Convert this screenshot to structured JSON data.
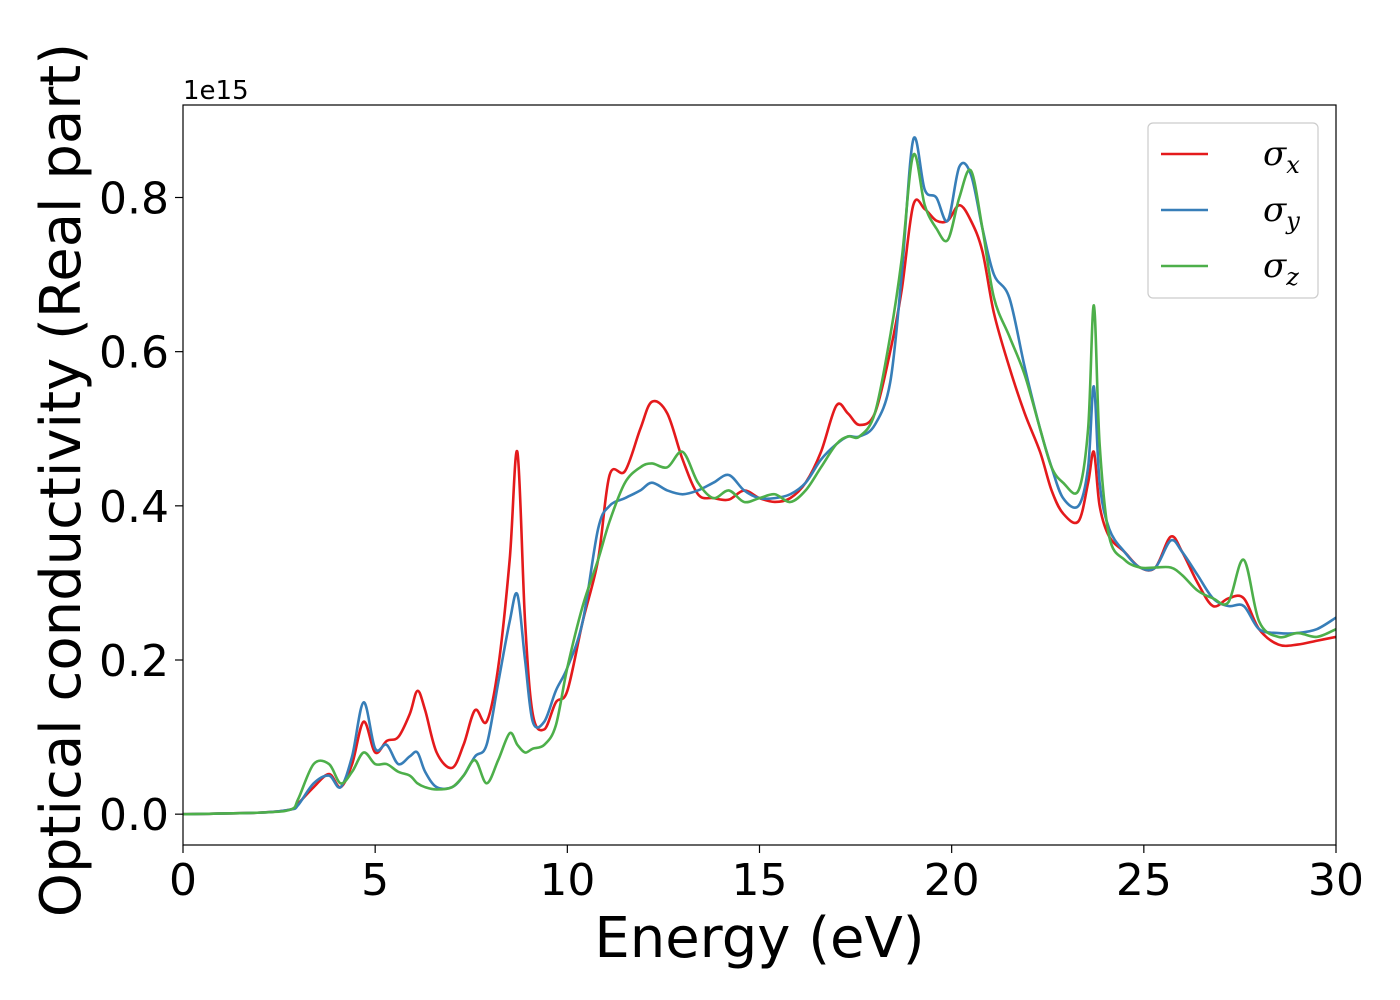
{
  "chart_data": {
    "type": "line",
    "xlabel": "Energy (eV)",
    "ylabel": "Optical conductivity (Real part)",
    "y_offset_label": "1e15",
    "xlim": [
      0,
      30
    ],
    "ylim": [
      -0.04,
      0.92
    ],
    "xticks": [
      0,
      5,
      10,
      15,
      20,
      25,
      30
    ],
    "xtick_labels": [
      "0",
      "5",
      "10",
      "15",
      "20",
      "25",
      "30"
    ],
    "yticks": [
      0.0,
      0.2,
      0.4,
      0.6,
      0.8
    ],
    "ytick_labels": [
      "0.0",
      "0.2",
      "0.4",
      "0.6",
      "0.8"
    ],
    "grid": false,
    "legend_position": "top-right",
    "series": [
      {
        "name": "σ",
        "subscript": "x",
        "color": "#e41a1c",
        "x": [
          0,
          2,
          2.8,
          3.0,
          3.4,
          3.8,
          4.1,
          4.4,
          4.7,
          5.0,
          5.3,
          5.6,
          5.9,
          6.1,
          6.3,
          6.6,
          7.0,
          7.3,
          7.6,
          7.9,
          8.2,
          8.5,
          8.7,
          8.9,
          9.1,
          9.4,
          9.7,
          10.0,
          10.4,
          10.8,
          11.1,
          11.5,
          11.9,
          12.2,
          12.6,
          13.0,
          13.4,
          13.8,
          14.2,
          14.6,
          15.0,
          15.4,
          15.8,
          16.2,
          16.6,
          17.0,
          17.3,
          17.6,
          18.0,
          18.4,
          18.7,
          19.0,
          19.3,
          19.6,
          19.9,
          20.2,
          20.5,
          20.8,
          21.1,
          21.5,
          21.9,
          22.3,
          22.6,
          22.9,
          23.3,
          23.55,
          23.7,
          23.85,
          24.1,
          24.5,
          24.9,
          25.3,
          25.7,
          26.0,
          26.4,
          26.8,
          27.2,
          27.6,
          28.0,
          28.5,
          29.0,
          29.5,
          30
        ],
        "y": [
          0.0,
          0.002,
          0.006,
          0.014,
          0.035,
          0.052,
          0.035,
          0.065,
          0.12,
          0.08,
          0.095,
          0.1,
          0.13,
          0.16,
          0.135,
          0.08,
          0.06,
          0.09,
          0.135,
          0.12,
          0.19,
          0.33,
          0.47,
          0.25,
          0.13,
          0.11,
          0.145,
          0.16,
          0.25,
          0.33,
          0.44,
          0.445,
          0.5,
          0.535,
          0.52,
          0.46,
          0.415,
          0.41,
          0.408,
          0.42,
          0.41,
          0.405,
          0.41,
          0.43,
          0.47,
          0.53,
          0.52,
          0.505,
          0.52,
          0.6,
          0.68,
          0.79,
          0.785,
          0.77,
          0.77,
          0.79,
          0.77,
          0.73,
          0.65,
          0.58,
          0.52,
          0.47,
          0.42,
          0.39,
          0.38,
          0.43,
          0.47,
          0.4,
          0.36,
          0.34,
          0.32,
          0.32,
          0.36,
          0.34,
          0.3,
          0.27,
          0.28,
          0.28,
          0.24,
          0.22,
          0.22,
          0.225,
          0.23
        ]
      },
      {
        "name": "σ",
        "subscript": "y",
        "color": "#377eb8",
        "x": [
          0,
          2,
          2.8,
          3.0,
          3.4,
          3.8,
          4.1,
          4.4,
          4.7,
          5.0,
          5.3,
          5.6,
          5.9,
          6.1,
          6.3,
          6.6,
          7.0,
          7.3,
          7.6,
          7.9,
          8.2,
          8.5,
          8.7,
          8.9,
          9.1,
          9.4,
          9.7,
          10.0,
          10.4,
          10.8,
          11.1,
          11.5,
          11.9,
          12.2,
          12.6,
          13.0,
          13.4,
          13.8,
          14.2,
          14.6,
          15.0,
          15.4,
          15.8,
          16.2,
          16.6,
          17.0,
          17.3,
          17.6,
          18.0,
          18.4,
          18.7,
          19.0,
          19.3,
          19.6,
          19.9,
          20.2,
          20.5,
          20.8,
          21.1,
          21.5,
          21.9,
          22.3,
          22.6,
          22.9,
          23.3,
          23.55,
          23.7,
          23.85,
          24.1,
          24.5,
          24.9,
          25.3,
          25.7,
          26.0,
          26.4,
          26.8,
          27.2,
          27.6,
          28.0,
          28.5,
          29.0,
          29.5,
          30
        ],
        "y": [
          0.0,
          0.002,
          0.006,
          0.012,
          0.04,
          0.05,
          0.035,
          0.075,
          0.145,
          0.085,
          0.09,
          0.065,
          0.075,
          0.08,
          0.055,
          0.035,
          0.035,
          0.05,
          0.075,
          0.09,
          0.17,
          0.25,
          0.285,
          0.2,
          0.12,
          0.12,
          0.16,
          0.19,
          0.25,
          0.37,
          0.4,
          0.41,
          0.42,
          0.43,
          0.42,
          0.415,
          0.42,
          0.43,
          0.44,
          0.42,
          0.41,
          0.41,
          0.415,
          0.43,
          0.46,
          0.48,
          0.49,
          0.49,
          0.505,
          0.56,
          0.7,
          0.875,
          0.81,
          0.8,
          0.77,
          0.84,
          0.83,
          0.76,
          0.7,
          0.67,
          0.58,
          0.5,
          0.45,
          0.41,
          0.4,
          0.45,
          0.555,
          0.43,
          0.37,
          0.34,
          0.32,
          0.32,
          0.355,
          0.34,
          0.31,
          0.28,
          0.27,
          0.27,
          0.24,
          0.235,
          0.235,
          0.24,
          0.255
        ]
      },
      {
        "name": "σ",
        "subscript": "z",
        "color": "#4daf4a",
        "x": [
          0,
          2,
          2.8,
          3.0,
          3.4,
          3.8,
          4.1,
          4.4,
          4.7,
          5.0,
          5.3,
          5.6,
          5.9,
          6.1,
          6.3,
          6.6,
          7.0,
          7.3,
          7.6,
          7.9,
          8.2,
          8.5,
          8.7,
          8.9,
          9.1,
          9.4,
          9.7,
          10.0,
          10.4,
          10.8,
          11.1,
          11.5,
          11.9,
          12.2,
          12.6,
          13.0,
          13.4,
          13.8,
          14.2,
          14.6,
          15.0,
          15.4,
          15.8,
          16.2,
          16.6,
          17.0,
          17.3,
          17.6,
          18.0,
          18.4,
          18.7,
          19.0,
          19.3,
          19.6,
          19.9,
          20.2,
          20.5,
          20.8,
          21.1,
          21.5,
          21.9,
          22.3,
          22.6,
          22.9,
          23.3,
          23.55,
          23.7,
          23.85,
          24.1,
          24.5,
          24.9,
          25.3,
          25.7,
          26.0,
          26.4,
          26.8,
          27.2,
          27.6,
          28.0,
          28.5,
          29.0,
          29.5,
          30
        ],
        "y": [
          0.0,
          0.002,
          0.006,
          0.02,
          0.065,
          0.065,
          0.04,
          0.055,
          0.08,
          0.065,
          0.065,
          0.055,
          0.05,
          0.04,
          0.035,
          0.032,
          0.035,
          0.05,
          0.07,
          0.04,
          0.07,
          0.105,
          0.09,
          0.08,
          0.085,
          0.09,
          0.115,
          0.19,
          0.27,
          0.33,
          0.38,
          0.43,
          0.45,
          0.455,
          0.45,
          0.47,
          0.43,
          0.41,
          0.42,
          0.405,
          0.41,
          0.415,
          0.405,
          0.42,
          0.45,
          0.48,
          0.49,
          0.49,
          0.52,
          0.62,
          0.72,
          0.855,
          0.79,
          0.76,
          0.745,
          0.8,
          0.835,
          0.76,
          0.67,
          0.62,
          0.57,
          0.5,
          0.45,
          0.43,
          0.42,
          0.5,
          0.66,
          0.48,
          0.36,
          0.33,
          0.32,
          0.32,
          0.32,
          0.31,
          0.29,
          0.28,
          0.275,
          0.33,
          0.25,
          0.23,
          0.235,
          0.23,
          0.24
        ]
      }
    ]
  }
}
